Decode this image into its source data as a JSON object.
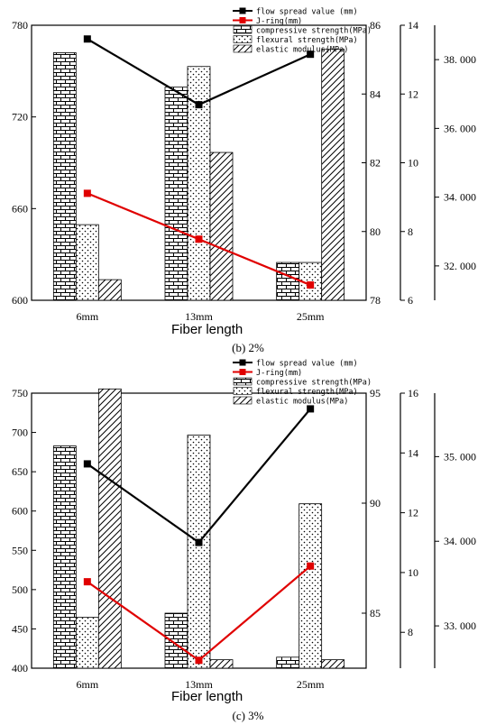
{
  "figure": {
    "captions": [
      "(b) 2%",
      "(c) 3%"
    ]
  },
  "chart_data": [
    {
      "type": "bar",
      "panel": "(b) 2%",
      "xlabel": "Fiber length",
      "categories": [
        "6mm",
        "13mm",
        "25mm"
      ],
      "legend": [
        "flow spread value (mm)",
        "J-ring(mm)",
        "compressive strength(MPa)",
        "flexural strength(MPa)",
        "elastic modulus(MPa)"
      ],
      "legend_position": "top-right",
      "axes": {
        "left": {
          "min": 600,
          "max": 780,
          "ticks": [
            600,
            660,
            720,
            780
          ]
        },
        "right1": {
          "min": 78,
          "max": 86,
          "ticks": [
            78,
            80,
            82,
            84,
            86
          ]
        },
        "right2": {
          "min": 6,
          "max": 14,
          "ticks": [
            6,
            8,
            10,
            12,
            14
          ]
        },
        "right3": {
          "min": 31.0,
          "max": 39.0,
          "ticks": [
            32.0,
            34.0,
            36.0,
            38.0
          ],
          "tick_labels": [
            "32. 000",
            "34. 000",
            "36. 000",
            "38. 000"
          ]
        }
      },
      "series": [
        {
          "name": "flow spread value (mm)",
          "kind": "line",
          "axis": "left",
          "color": "#000000",
          "values": [
            771,
            728,
            761
          ]
        },
        {
          "name": "J-ring(mm)",
          "kind": "line",
          "axis": "left",
          "color": "#e00000",
          "values": [
            670,
            640,
            610
          ]
        },
        {
          "name": "compressive strength(MPa)",
          "kind": "bar",
          "axis": "right1",
          "pattern": "brick",
          "values": [
            85.2,
            84.2,
            79.1
          ]
        },
        {
          "name": "flexural strength(MPa)",
          "kind": "bar",
          "axis": "right2",
          "pattern": "dots",
          "values": [
            8.2,
            12.8,
            7.1
          ]
        },
        {
          "name": "elastic modulus(MPa)",
          "kind": "bar",
          "axis": "right3",
          "pattern": "hatch",
          "values": [
            31.6,
            35.3,
            38.3
          ]
        }
      ]
    },
    {
      "type": "bar",
      "panel": "(c) 3%",
      "xlabel": "Fiber length",
      "categories": [
        "6mm",
        "13mm",
        "25mm"
      ],
      "legend": [
        "flow spread value (mm)",
        "J-ring(mm)",
        "compressive strength(MPa)",
        "flexural strength(MPa)",
        "elastic modulus(MPa)"
      ],
      "legend_position": "top-right",
      "axes": {
        "left": {
          "min": 400,
          "max": 750,
          "ticks": [
            400,
            450,
            500,
            550,
            600,
            650,
            700,
            750
          ]
        },
        "right1": {
          "min": 82.5,
          "max": 95,
          "ticks": [
            85,
            90,
            95
          ]
        },
        "right2": {
          "min": 6.8,
          "max": 16,
          "ticks": [
            8,
            10,
            12,
            14,
            16
          ]
        },
        "right3": {
          "min": 32.5,
          "max": 35.75,
          "ticks": [
            33.0,
            34.0,
            35.0
          ],
          "tick_labels": [
            "33. 000",
            "34. 000",
            "35. 000"
          ]
        }
      },
      "series": [
        {
          "name": "flow spread value (mm)",
          "kind": "line",
          "axis": "left",
          "color": "#000000",
          "values": [
            660,
            560,
            730
          ]
        },
        {
          "name": "J-ring(mm)",
          "kind": "line",
          "axis": "left",
          "color": "#e00000",
          "values": [
            510,
            410,
            530
          ]
        },
        {
          "name": "compressive strength(MPa)",
          "kind": "bar",
          "axis": "right1",
          "pattern": "brick",
          "values": [
            92.6,
            85,
            83
          ]
        },
        {
          "name": "flexural strength(MPa)",
          "kind": "bar",
          "axis": "right2",
          "pattern": "dots",
          "values": [
            8.5,
            14.6,
            12.3
          ]
        },
        {
          "name": "elastic modulus(MPa)",
          "kind": "bar",
          "axis": "right3",
          "pattern": "hatch",
          "values": [
            35.8,
            32.6,
            32.6
          ]
        }
      ]
    }
  ]
}
